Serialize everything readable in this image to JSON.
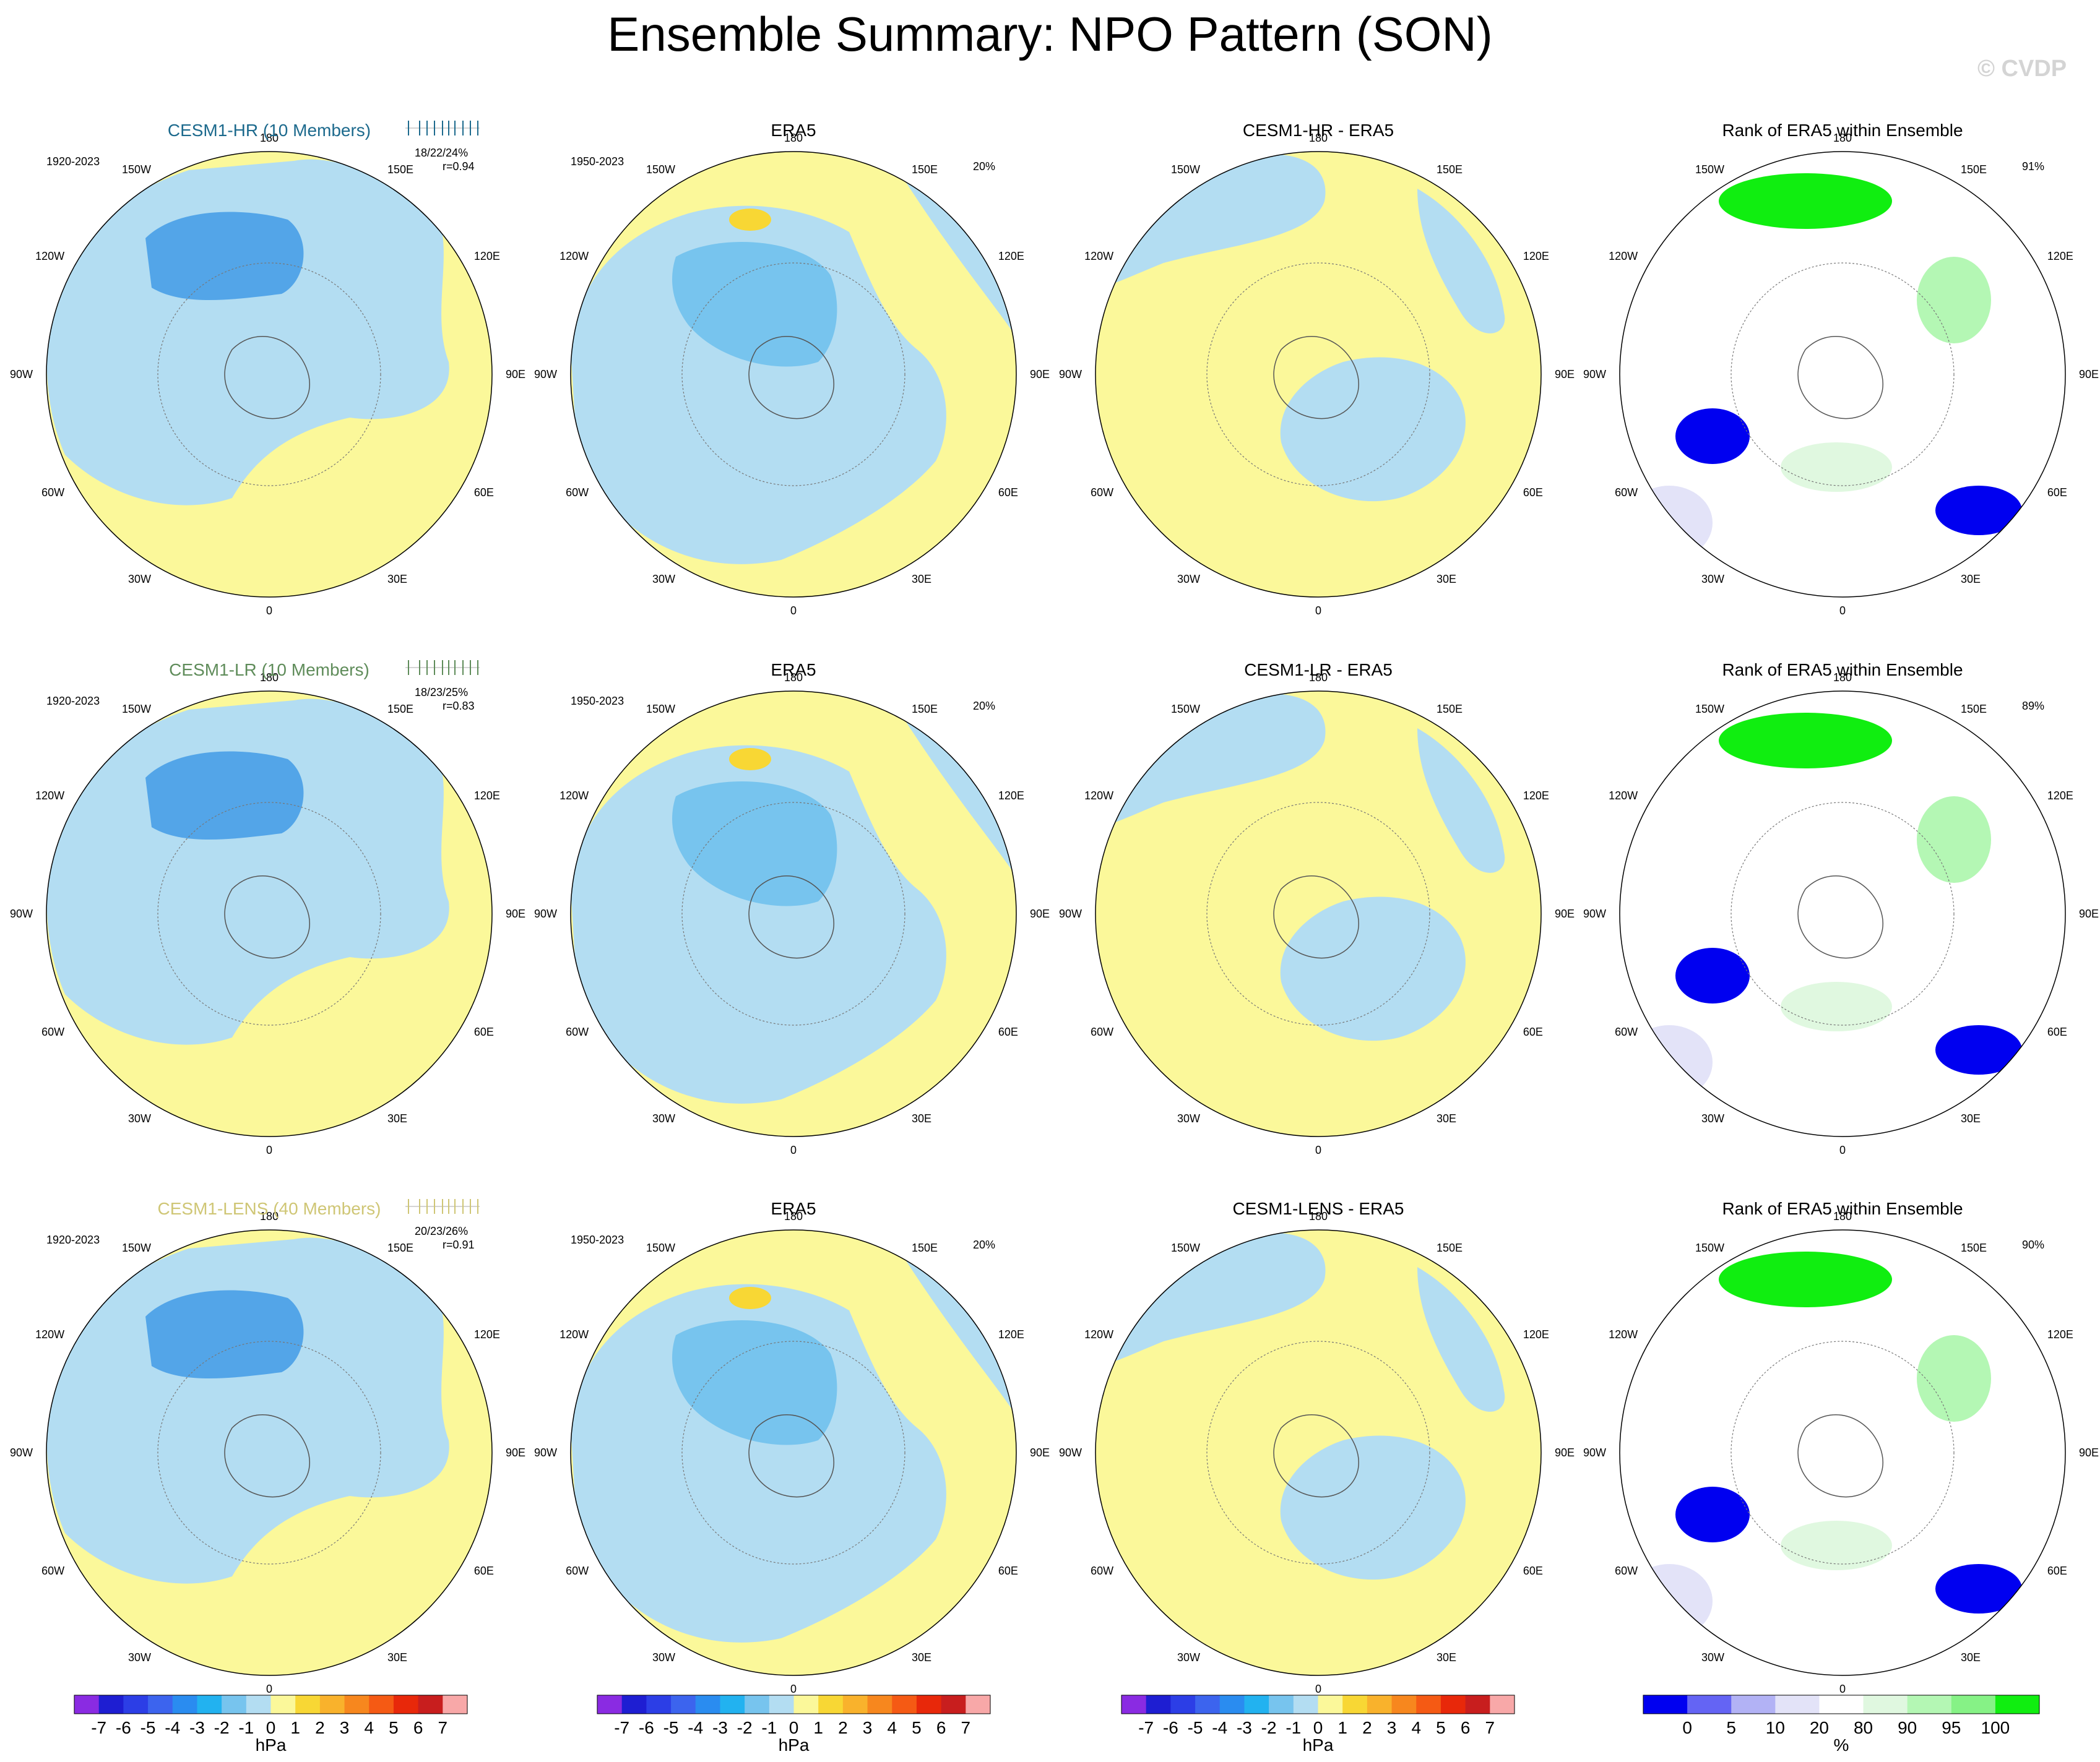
{
  "title": "Ensemble Summary: NPO Pattern (SON)",
  "watermark": "© CVDP",
  "colors": {
    "neg_light": "#b3ddf2",
    "neg_mid": "#77c4ee",
    "neg_dark": "#53a5e8",
    "neg_core": "#22b2f0",
    "pos_light": "#fbf89a",
    "pos_mid": "#f8d734",
    "rank_low": "#0000f0",
    "rank_5": "#6464f4",
    "rank_10": "#b2b2f5",
    "rank_20": "#e3e3f8",
    "rank_80": "#e0f8e0",
    "rank_90": "#b4f7b4",
    "rank_95": "#86f286",
    "rank_high": "#10ee10",
    "row_titles": [
      "#1d6a8d",
      "#5f8c5a",
      "#cfc675"
    ]
  },
  "lon_labels": [
    "180",
    "150E",
    "120E",
    "90E",
    "60E",
    "30E",
    "0",
    "30W",
    "60W",
    "90W",
    "120W",
    "150W"
  ],
  "rows": [
    {
      "model_title": "CESM1-HR (10 Members)",
      "model_period": "1920-2023",
      "model_stats": "18/22/24%",
      "model_r": "r=0.94",
      "obs_title": "ERA5",
      "obs_period": "1950-2023",
      "obs_pct": "20%",
      "diff_title": "CESM1-HR - ERA5",
      "rank_title": "Rank of ERA5 within Ensemble",
      "rank_pct": "91%"
    },
    {
      "model_title": "CESM1-LR (10 Members)",
      "model_period": "1920-2023",
      "model_stats": "18/23/25%",
      "model_r": "r=0.83",
      "obs_title": "ERA5",
      "obs_period": "1950-2023",
      "obs_pct": "20%",
      "diff_title": "CESM1-LR - ERA5",
      "rank_title": "Rank of ERA5 within Ensemble",
      "rank_pct": "89%"
    },
    {
      "model_title": "CESM1-LENS (40 Members)",
      "model_period": "1920-2023",
      "model_stats": "20/23/26%",
      "model_r": "r=0.91",
      "obs_title": "ERA5",
      "obs_period": "1950-2023",
      "obs_pct": "20%",
      "diff_title": "CESM1-LENS - ERA5",
      "rank_title": "Rank of ERA5 within Ensemble",
      "rank_pct": "90%"
    }
  ],
  "colorbar_hpa": {
    "colors": [
      "#8a2be2",
      "#1e1ed2",
      "#2c3ee6",
      "#3c64ee",
      "#2a8cf0",
      "#22b2f0",
      "#77c4ee",
      "#b3ddf2",
      "#fbf89a",
      "#f8d734",
      "#f9b22c",
      "#f7871e",
      "#f55a14",
      "#e8280a",
      "#c81e1e",
      "#f8a8a8"
    ],
    "labels": [
      "-7",
      "-6",
      "-5",
      "-4",
      "-3",
      "-2",
      "-1",
      "0",
      "1",
      "2",
      "3",
      "4",
      "5",
      "6",
      "7"
    ],
    "unit": "hPa"
  },
  "colorbar_rank": {
    "colors": [
      "#0000f0",
      "#6464f4",
      "#b2b2f5",
      "#e3e3f8",
      "#ffffff",
      "#e0f8e0",
      "#b4f7b4",
      "#86f286",
      "#10ee10"
    ],
    "labels": [
      "0",
      "5",
      "10",
      "20",
      "80",
      "90",
      "95",
      "100"
    ],
    "unit": "%"
  }
}
